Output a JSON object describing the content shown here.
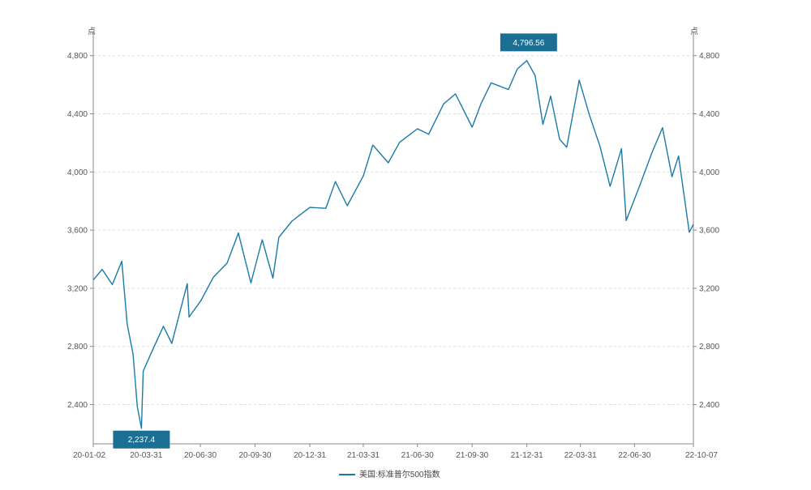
{
  "chart_data": {
    "type": "line",
    "title": "",
    "y_unit_left": "点",
    "y_unit_right": "点",
    "ylim": [
      2130,
      4960
    ],
    "y_ticks": [
      2400,
      2800,
      3200,
      3600,
      4000,
      4400,
      4800
    ],
    "y_tick_labels": [
      "2,400",
      "2,800",
      "3,200",
      "3,600",
      "4,000",
      "4,400",
      "4,800"
    ],
    "x_ticks": [
      "2020-01-02",
      "2020-03-31",
      "2020-06-30",
      "2020-09-30",
      "2020-12-31",
      "2021-03-31",
      "2021-06-30",
      "2021-09-30",
      "2021-12-31",
      "2022-03-31",
      "2022-06-30",
      "2022-10-07"
    ],
    "x_tick_labels": [
      "20-01-02",
      "20-03-31",
      "20-06-30",
      "20-09-30",
      "20-12-31",
      "21-03-31",
      "21-06-30",
      "21-09-30",
      "21-12-31",
      "22-03-31",
      "22-06-30",
      "22-10-07"
    ],
    "x_range": [
      "2020-01-02",
      "2022-10-07"
    ],
    "grid": true,
    "legend_position": "bottom",
    "colors": {
      "series": "#1a7aa8",
      "callout_bg": "#1a6f93"
    },
    "series": [
      {
        "name": "美国:标准普尔500指数",
        "x": [
          "2020-01-02",
          "2020-01-17",
          "2020-02-03",
          "2020-02-19",
          "2020-02-28",
          "2020-03-09",
          "2020-03-16",
          "2020-03-23",
          "2020-03-26",
          "2020-04-08",
          "2020-04-29",
          "2020-05-13",
          "2020-06-08",
          "2020-06-11",
          "2020-07-01",
          "2020-07-22",
          "2020-08-14",
          "2020-09-02",
          "2020-09-23",
          "2020-10-12",
          "2020-10-30",
          "2020-11-09",
          "2020-12-01",
          "2020-12-31",
          "2021-01-27",
          "2021-02-12",
          "2021-03-04",
          "2021-03-31",
          "2021-04-16",
          "2021-05-12",
          "2021-05-31",
          "2021-06-30",
          "2021-07-19",
          "2021-08-13",
          "2021-09-02",
          "2021-09-30",
          "2021-10-15",
          "2021-11-01",
          "2021-11-30",
          "2021-12-15",
          "2021-12-31",
          "2022-01-14",
          "2022-01-27",
          "2022-02-09",
          "2022-02-24",
          "2022-03-08",
          "2022-03-29",
          "2022-04-15",
          "2022-05-03",
          "2022-05-20",
          "2022-06-08",
          "2022-06-16",
          "2022-07-08",
          "2022-07-29",
          "2022-08-16",
          "2022-09-01",
          "2022-09-12",
          "2022-09-30",
          "2022-10-07"
        ],
        "y": [
          3257,
          3330,
          3225,
          3386,
          2954,
          2746,
          2386,
          2237,
          2630,
          2750,
          2939,
          2820,
          3232,
          3002,
          3115,
          3276,
          3373,
          3580,
          3237,
          3534,
          3270,
          3550,
          3662,
          3756,
          3750,
          3934,
          3768,
          3973,
          4185,
          4063,
          4204,
          4297,
          4259,
          4468,
          4537,
          4308,
          4471,
          4613,
          4567,
          4709,
          4766,
          4662,
          4327,
          4522,
          4225,
          4170,
          4632,
          4393,
          4175,
          3901,
          4160,
          3666,
          3899,
          4130,
          4305,
          3967,
          4110,
          3585,
          3640
        ]
      }
    ],
    "annotations": [
      {
        "label": "4,796.56",
        "x": "2022-01-03",
        "y": 4796.56
      },
      {
        "label": "2,237.4",
        "x": "2020-03-23",
        "y": 2237.4
      }
    ]
  }
}
